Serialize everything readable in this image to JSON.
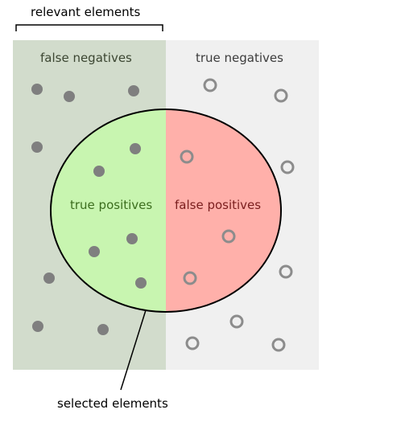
{
  "labels": {
    "relevant_elements": "relevant elements",
    "selected_elements": "selected elements",
    "false_negatives": "false negatives",
    "true_negatives": "true negatives",
    "true_positives": "true positives",
    "false_positives": "false positives"
  },
  "colors": {
    "relevant_bg": "#d2dccc",
    "irrelevant_bg": "#f0f0f0",
    "true_positive_fill": "#c8f5b0",
    "false_positive_fill": "#ffb0aa",
    "relevant_dot": "#7f7f7f",
    "irrelevant_ring": "#8c8c8c",
    "outline": "#000000",
    "false_negatives_text": "#3c4632",
    "true_negatives_text": "#3c3c3c",
    "true_positives_text": "#3c6e1e",
    "false_positives_text": "#7a1e1e"
  },
  "icons": {
    "relevant_item": "filled-gray-dot-icon",
    "irrelevant_item": "hollow-gray-ring-icon"
  }
}
